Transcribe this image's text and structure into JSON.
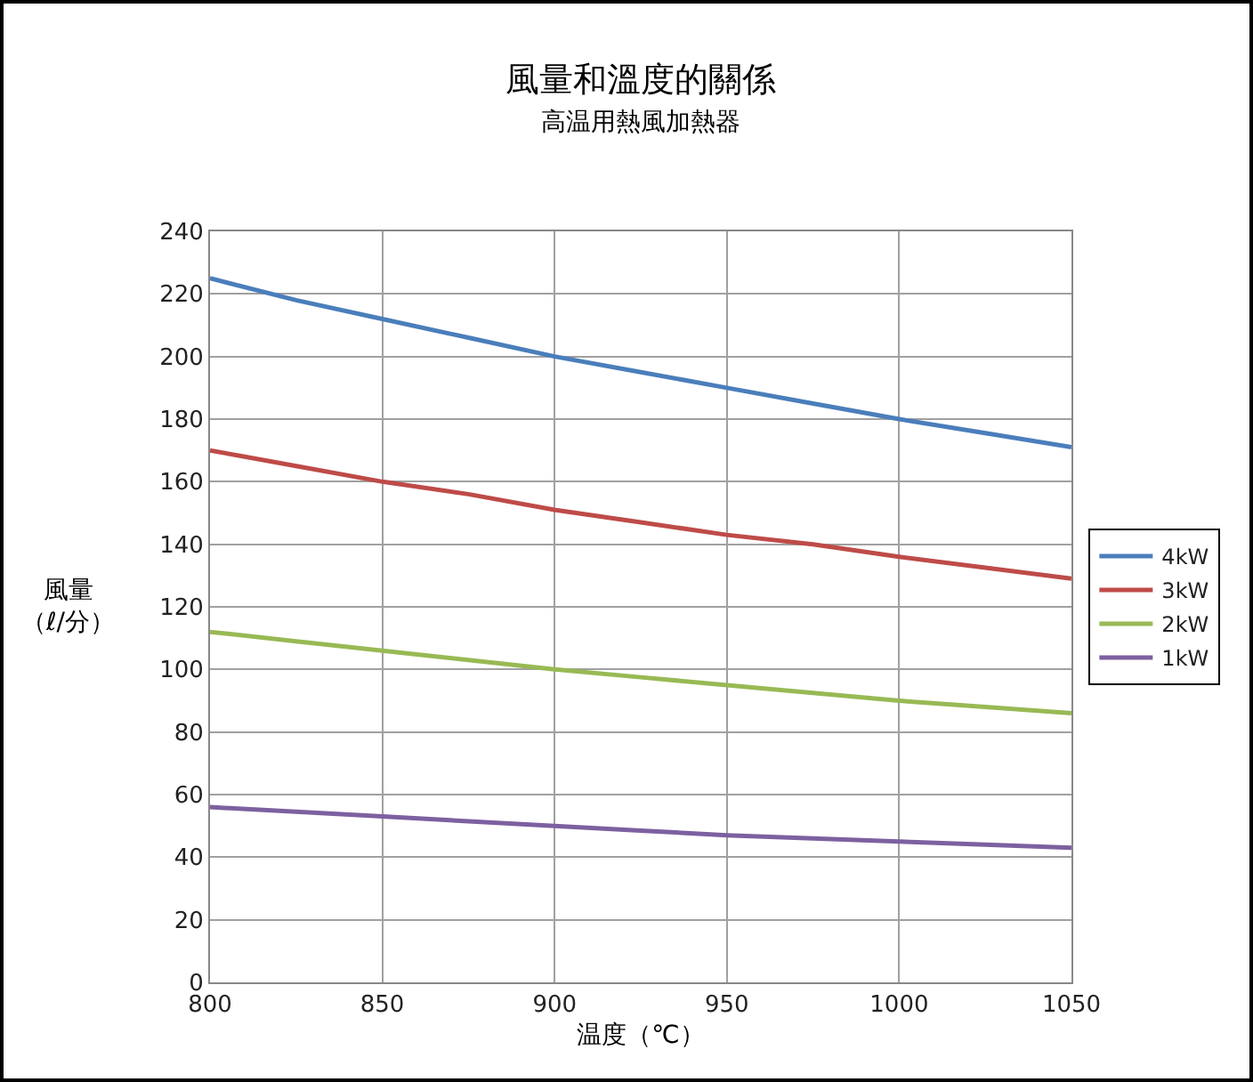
{
  "chart_data": {
    "type": "line",
    "title": "風量和溫度的關係",
    "subtitle": "高温用熱風加熱器",
    "xlabel": "温度（℃）",
    "ylabel": "風量（ℓ/分）",
    "x": [
      800,
      825,
      850,
      875,
      900,
      925,
      950,
      975,
      1000,
      1025,
      1050
    ],
    "series": [
      {
        "name": "4kW",
        "color": "#4a7ebb",
        "values": [
          225,
          218,
          212,
          206,
          200,
          195,
          190,
          185,
          180,
          175.5,
          171
        ]
      },
      {
        "name": "3kW",
        "color": "#be4b48",
        "values": [
          170,
          165,
          160,
          156,
          151,
          147,
          143,
          140,
          136,
          132.5,
          129
        ]
      },
      {
        "name": "2kW",
        "color": "#98b954",
        "values": [
          112,
          109,
          106,
          103,
          100,
          97.5,
          95,
          92.5,
          90,
          88,
          86
        ]
      },
      {
        "name": "1kW",
        "color": "#7d60a0",
        "values": [
          56,
          54.5,
          53,
          51.5,
          50,
          48.5,
          47,
          46,
          45,
          44,
          43
        ]
      }
    ],
    "xlim": [
      800,
      1050
    ],
    "xticks": [
      800,
      850,
      900,
      950,
      1000,
      1050
    ],
    "ylim": [
      0,
      240
    ],
    "yticks": [
      0,
      20,
      40,
      60,
      80,
      100,
      120,
      140,
      160,
      180,
      200,
      220,
      240
    ],
    "grid": true,
    "legend": "right",
    "marker": "none",
    "line_style": "solid"
  }
}
